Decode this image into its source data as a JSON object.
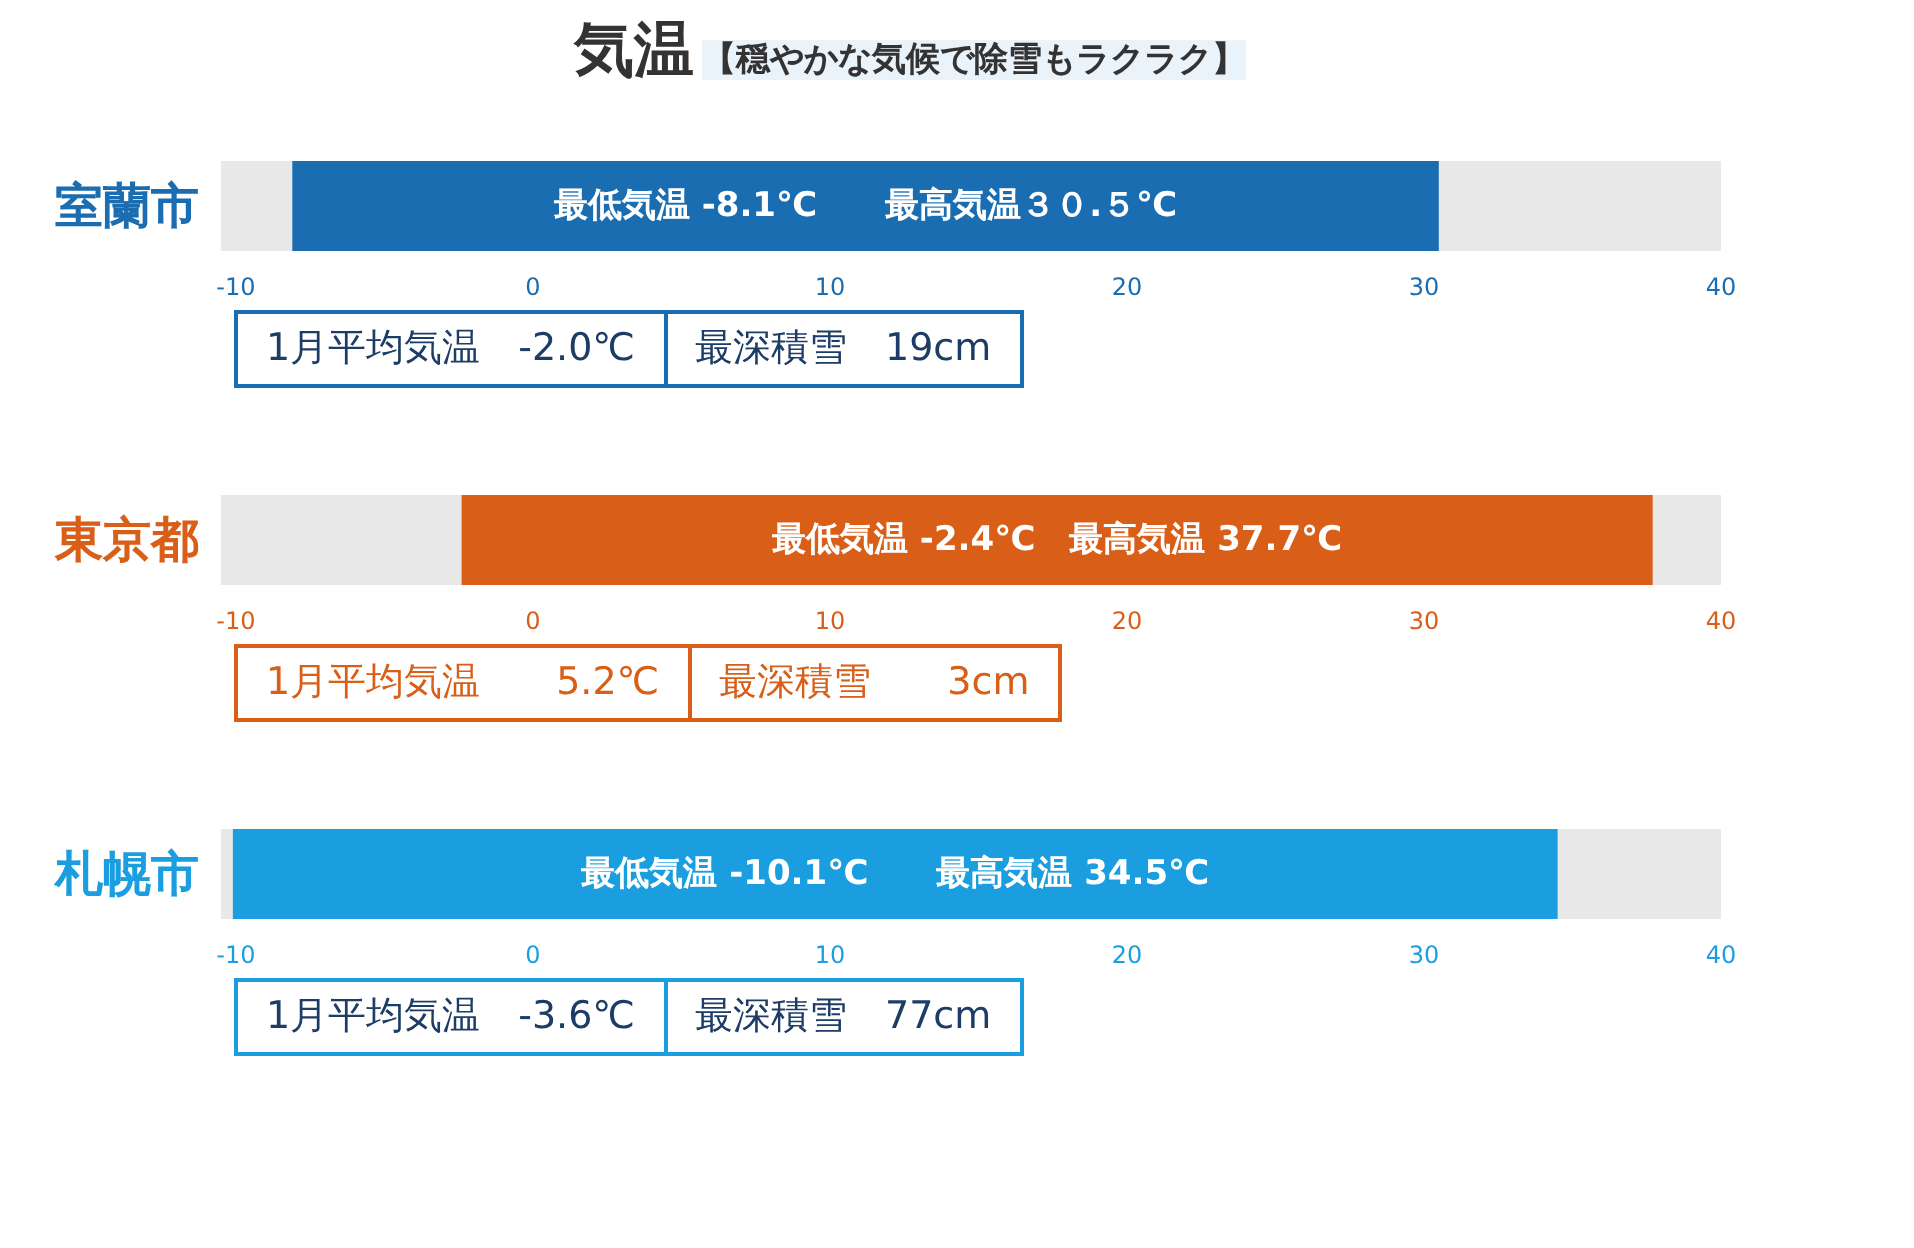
{
  "chart_data": [
    {
      "type": "bar",
      "title": "気温",
      "subtitle": "【穏やかな気候で除雪もラクラク】",
      "orientation": "horizontal",
      "categories": [
        "室蘭市"
      ],
      "base": [
        -8.1
      ],
      "values": [
        38.6
      ],
      "color": "#1a6db0",
      "value_labels": [
        "最低気温 -8.1℃　　最高気温３０.５℃"
      ],
      "xlim": [
        -10.5,
        40
      ],
      "xticks": [
        -10,
        0,
        10,
        20,
        30,
        40
      ],
      "annotations": [
        "1月平均気温　-2.0℃",
        "最深積雪　19cm"
      ]
    },
    {
      "type": "bar",
      "orientation": "horizontal",
      "categories": [
        "東京都"
      ],
      "base": [
        -2.4
      ],
      "values": [
        40.1
      ],
      "color": "#d95e17",
      "value_labels": [
        "最低気温 -2.4℃　最高気温 37.7℃"
      ],
      "xlim": [
        -10.5,
        40
      ],
      "xticks": [
        -10,
        0,
        10,
        20,
        30,
        40
      ],
      "annotations": [
        "1月平均気温　　5.2℃",
        "最深積雪　　3cm"
      ]
    },
    {
      "type": "bar",
      "orientation": "horizontal",
      "categories": [
        "札幌市"
      ],
      "base": [
        -10.1
      ],
      "values": [
        44.6
      ],
      "color": "#1a9ee0",
      "value_labels": [
        "最低気温 -10.1℃　　最高気温 34.5℃"
      ],
      "xlim": [
        -10.5,
        40
      ],
      "xticks": [
        -10,
        0,
        10,
        20,
        30,
        40
      ],
      "annotations": [
        "1月平均気温　-3.6℃",
        "最深積雪　77cm"
      ]
    }
  ]
}
